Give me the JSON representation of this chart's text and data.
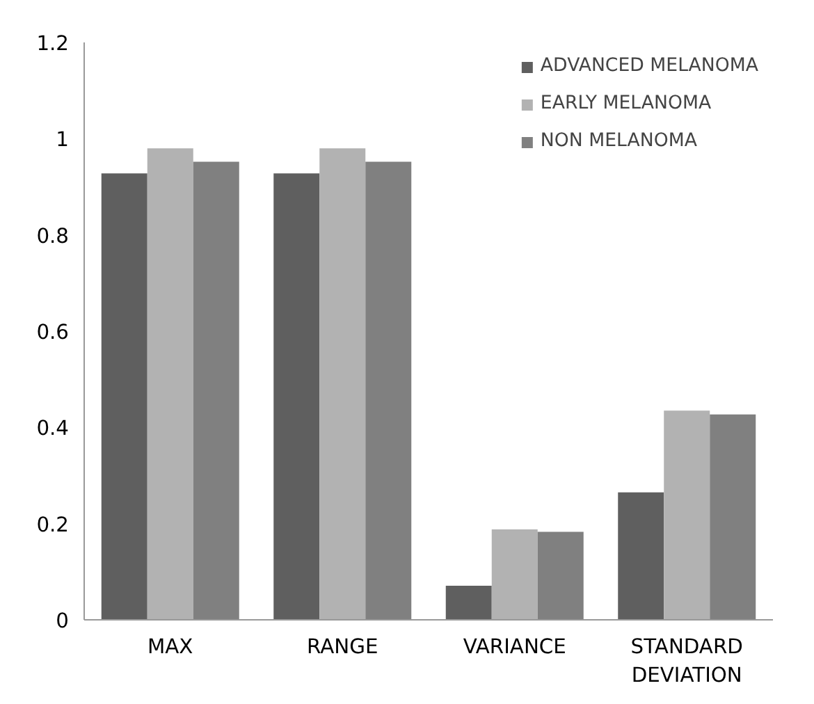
{
  "chart_data": {
    "type": "bar",
    "categories": [
      "MAX",
      "RANGE",
      "VARIANCE",
      "STANDARD DEVIATION"
    ],
    "series": [
      {
        "name": "ADVANCED MELANOMA",
        "color": "#5f5f5f",
        "values": [
          0.928,
          0.928,
          0.071,
          0.265
        ]
      },
      {
        "name": "EARLY MELANOMA",
        "color": "#b2b2b2",
        "values": [
          0.98,
          0.98,
          0.188,
          0.435
        ]
      },
      {
        "name": "NON MELANOMA",
        "color": "#808080",
        "values": [
          0.952,
          0.952,
          0.183,
          0.427
        ]
      }
    ],
    "ylim": [
      0,
      1.2
    ],
    "yticks": [
      0,
      0.2,
      0.4,
      0.6,
      0.8,
      1,
      1.2
    ],
    "grid": false,
    "legend": "top right"
  }
}
